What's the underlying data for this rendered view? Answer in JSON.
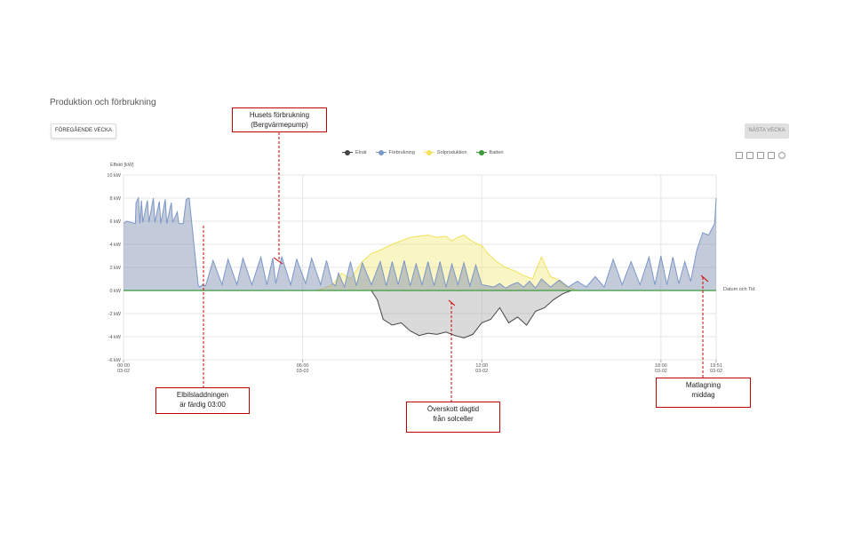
{
  "title": "Produktion och förbrukning",
  "buttons": {
    "prev": "FÖREGÅENDE VECKA",
    "next": "NÄSTA VECKA"
  },
  "legend": [
    {
      "label": "Elnät",
      "color": "#444444"
    },
    {
      "label": "Förbrukning",
      "color": "#7b96c8"
    },
    {
      "label": "Solproduktion",
      "color": "#f0e25a"
    },
    {
      "label": "Batteri",
      "color": "#3a9a3a"
    }
  ],
  "toolbar_icons": [
    "document-icon",
    "download-icon",
    "zoom-icon",
    "zoom-reset-icon",
    "refresh-icon"
  ],
  "annotations": {
    "house": [
      "Husets förbrukning",
      "(Bergvärmepump)"
    ],
    "ev": [
      "Elbilsladdningen",
      "är färdig 03:00"
    ],
    "surplus": [
      "Överskott dagtid",
      "från solceller"
    ],
    "dinner": [
      "Matlagning",
      "middag"
    ]
  },
  "chart_data": {
    "type": "area",
    "ylabel": "Effekt [kW]",
    "xlabel": "Datum och Tid",
    "ylim": [
      -6,
      10
    ],
    "yticks": [
      "10 kW",
      "8 kW",
      "6 kW",
      "4 kW",
      "2 kW",
      "0 kW",
      "-2 kW",
      "-4 kW",
      "-6 kW"
    ],
    "xticks": [
      {
        "time": "00:00",
        "date": "03-02"
      },
      {
        "time": "06:00",
        "date": "03-02"
      },
      {
        "time": "12:00",
        "date": "03-02"
      },
      {
        "time": "18:00",
        "date": "03-02"
      },
      {
        "time": "19:51",
        "date": "03-02"
      }
    ],
    "xrange_hours": [
      0,
      19.85
    ],
    "series": [
      {
        "name": "Förbrukning",
        "color": "#7b96c8",
        "x": [
          0,
          0.1,
          0.4,
          0.42,
          0.5,
          0.55,
          0.6,
          0.65,
          0.8,
          0.85,
          1.0,
          1.05,
          1.2,
          1.25,
          1.4,
          1.45,
          1.6,
          1.65,
          1.8,
          1.85,
          2.0,
          2.1,
          2.2,
          2.5,
          2.55,
          2.65,
          2.75,
          3.0,
          3.3,
          3.5,
          3.8,
          4.0,
          4.3,
          4.6,
          4.8,
          5.0,
          5.1,
          5.3,
          5.6,
          5.8,
          6.1,
          6.3,
          6.6,
          6.8,
          7.0,
          7.1,
          7.2,
          7.4,
          7.6,
          7.8,
          8.0,
          8.3,
          8.6,
          8.8,
          9.0,
          9.2,
          9.4,
          9.6,
          9.8,
          10.0,
          10.2,
          10.4,
          10.6,
          10.8,
          11.0,
          11.2,
          11.4,
          11.6,
          11.8,
          12.0,
          12.2,
          12.4,
          12.6,
          12.8,
          13.0,
          13.2,
          13.4,
          13.6,
          13.8,
          14.0,
          14.3,
          14.6,
          14.9,
          15.2,
          15.5,
          15.8,
          16.1,
          16.4,
          16.7,
          17.0,
          17.3,
          17.6,
          17.8,
          18.0,
          18.2,
          18.4,
          18.6,
          18.8,
          19.0,
          19.2,
          19.4,
          19.6,
          19.8,
          19.85
        ],
        "values": [
          5.8,
          6.0,
          5.8,
          7.6,
          8.0,
          5.8,
          7.8,
          5.9,
          7.8,
          5.9,
          8.0,
          5.9,
          7.7,
          5.8,
          7.9,
          5.8,
          7.6,
          5.9,
          6.8,
          5.8,
          5.8,
          7.9,
          8.0,
          0.5,
          0.3,
          0.5,
          0.4,
          2.6,
          0.5,
          2.7,
          0.5,
          2.8,
          0.5,
          2.9,
          0.5,
          2.8,
          0.6,
          2.9,
          0.5,
          2.7,
          0.6,
          2.8,
          0.5,
          2.6,
          0.6,
          0.4,
          1.5,
          0.3,
          2.5,
          0.4,
          2.4,
          0.5,
          2.5,
          0.4,
          2.5,
          0.5,
          2.6,
          0.4,
          2.3,
          0.5,
          2.5,
          0.4,
          2.5,
          0.3,
          2.3,
          0.5,
          2.4,
          0.4,
          2.2,
          0.5,
          0.4,
          0.3,
          0.6,
          0.2,
          0.5,
          0.7,
          0.3,
          0.8,
          0.2,
          1.0,
          0.3,
          0.9,
          0.3,
          0.8,
          0.3,
          1.2,
          0.3,
          2.7,
          0.5,
          2.5,
          0.5,
          2.9,
          0.5,
          3.0,
          0.5,
          2.9,
          0.6,
          2.5,
          0.8,
          3.5,
          5.0,
          4.8,
          5.8,
          8.0
        ]
      },
      {
        "name": "Solproduktion",
        "color": "#f0e25a",
        "x": [
          6.5,
          7.0,
          7.3,
          7.6,
          8.0,
          8.3,
          8.6,
          9.0,
          9.3,
          9.6,
          9.9,
          10.2,
          10.5,
          10.8,
          11.0,
          11.2,
          11.4,
          11.6,
          11.8,
          12.0,
          12.2,
          12.5,
          12.8,
          13.1,
          13.4,
          13.7,
          14.0,
          14.3,
          14.5,
          14.8,
          15.2
        ],
        "values": [
          0,
          0.5,
          1.5,
          1.0,
          2.5,
          3.2,
          3.5,
          4.0,
          4.3,
          4.6,
          4.7,
          4.8,
          4.6,
          4.7,
          4.3,
          4.6,
          4.8,
          4.4,
          4.1,
          3.9,
          3.2,
          2.5,
          2.0,
          1.7,
          1.3,
          1.0,
          2.9,
          1.2,
          1.0,
          0.4,
          0
        ]
      },
      {
        "name": "Elnät",
        "color": "#444444",
        "x": [
          8.3,
          8.5,
          8.7,
          9.0,
          9.3,
          9.6,
          9.9,
          10.2,
          10.5,
          10.8,
          11.1,
          11.4,
          11.7,
          12.0,
          12.3,
          12.6,
          12.9,
          13.2,
          13.5,
          13.8,
          14.1,
          14.4,
          14.7,
          15.0
        ],
        "values": [
          0,
          -0.8,
          -2.5,
          -3.0,
          -2.8,
          -3.5,
          -3.9,
          -3.7,
          -3.8,
          -3.6,
          -3.9,
          -4.1,
          -3.8,
          -2.8,
          -2.5,
          -1.5,
          -2.8,
          -2.3,
          -3.0,
          -1.8,
          -1.5,
          -0.8,
          -0.3,
          0
        ]
      },
      {
        "name": "Batteri",
        "color": "#3a9a3a",
        "x": [
          0,
          19.85
        ],
        "values": [
          0,
          0
        ]
      }
    ]
  }
}
